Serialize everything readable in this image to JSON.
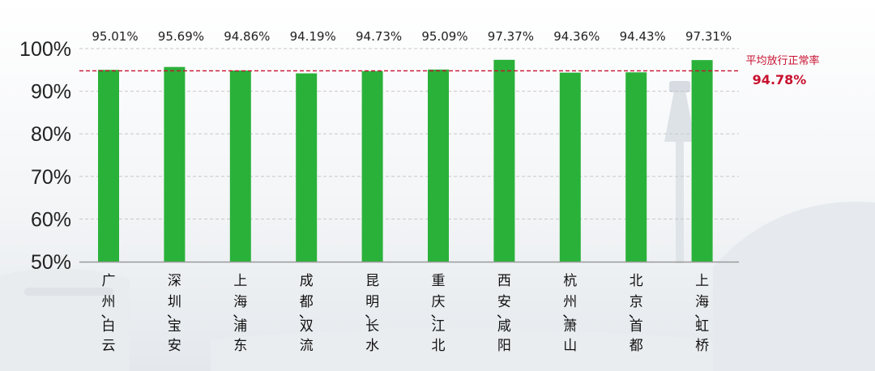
{
  "chart_data": {
    "type": "bar",
    "categories": [
      "广州、白云",
      "深圳、宝安",
      "上海、浦东",
      "成都、双流",
      "昆明、长水",
      "重庆、江北",
      "西安、咸阳",
      "杭州、萧山",
      "北京、首都",
      "上海、虹桥"
    ],
    "category_lines": [
      [
        "广",
        "州",
        "、",
        "白",
        "云"
      ],
      [
        "深",
        "圳",
        "、",
        "宝",
        "安"
      ],
      [
        "上",
        "海",
        "、",
        "浦",
        "东"
      ],
      [
        "成",
        "都",
        "、",
        "双",
        "流"
      ],
      [
        "昆",
        "明",
        "、",
        "长",
        "水"
      ],
      [
        "重",
        "庆",
        "、",
        "江",
        "北"
      ],
      [
        "西",
        "安",
        "、",
        "咸",
        "阳"
      ],
      [
        "杭",
        "州",
        "、",
        "萧",
        "山"
      ],
      [
        "北",
        "京",
        "、",
        "首",
        "都"
      ],
      [
        "上",
        "海",
        "、",
        "虹",
        "桥"
      ]
    ],
    "values": [
      95.01,
      95.69,
      94.86,
      94.19,
      94.73,
      95.09,
      97.37,
      94.36,
      94.43,
      97.31
    ],
    "value_labels": [
      "95.01%",
      "95.69%",
      "94.86%",
      "94.19%",
      "94.73%",
      "95.09%",
      "97.37%",
      "94.36%",
      "94.43%",
      "97.31%"
    ],
    "ylim": [
      50,
      100
    ],
    "yticks": [
      50,
      60,
      70,
      80,
      90,
      100
    ],
    "ytick_labels": [
      "50%",
      "60%",
      "70%",
      "80%",
      "90%",
      "100%"
    ],
    "grid": true,
    "reference_line": {
      "value": 94.78,
      "label": "平均放行正常率",
      "value_label": "94.78%"
    },
    "colors": {
      "bar": "#2ab13a",
      "reference": "#c8102e",
      "grid": "#c8c8c8",
      "axis": "#999999"
    }
  }
}
